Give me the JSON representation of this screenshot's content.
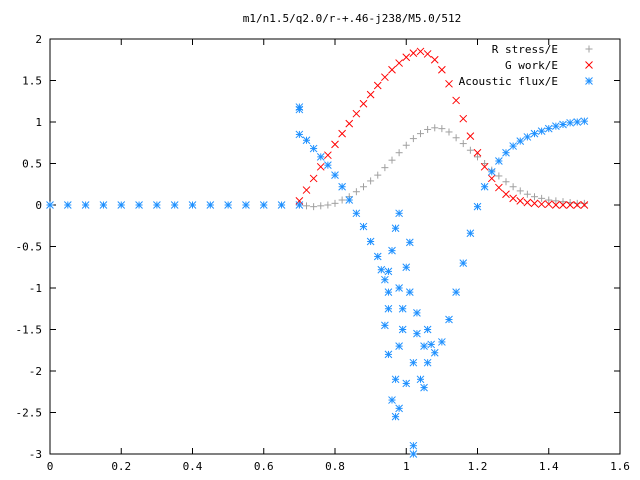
{
  "chart_data": {
    "type": "scatter",
    "title": "m1/n1.5/q2.0/r-+.46-j238/M5.0/512",
    "xlabel": "",
    "ylabel": "",
    "xlim": [
      0,
      1.6
    ],
    "ylim": [
      -3,
      2
    ],
    "x_ticks": [
      "0",
      "0.2",
      "0.4",
      "0.6",
      "0.8",
      "1",
      "1.2",
      "1.4",
      "1.6"
    ],
    "y_ticks": [
      "2",
      "1.5",
      "1",
      "0.5",
      "0",
      "-0.5",
      "-1",
      "-1.5",
      "-2",
      "-2.5",
      "-3"
    ],
    "grid": false,
    "legend_position": "top-right",
    "series": [
      {
        "name": "R stress/E",
        "marker": "+",
        "color": "#a0a0a0",
        "points": [
          [
            0.7,
            0.0
          ],
          [
            0.72,
            -0.01
          ],
          [
            0.74,
            -0.02
          ],
          [
            0.76,
            -0.01
          ],
          [
            0.78,
            0.0
          ],
          [
            0.8,
            0.02
          ],
          [
            0.82,
            0.06
          ],
          [
            0.84,
            0.1
          ],
          [
            0.86,
            0.16
          ],
          [
            0.88,
            0.22
          ],
          [
            0.9,
            0.29
          ],
          [
            0.92,
            0.36
          ],
          [
            0.94,
            0.45
          ],
          [
            0.96,
            0.54
          ],
          [
            0.98,
            0.63
          ],
          [
            1.0,
            0.72
          ],
          [
            1.02,
            0.8
          ],
          [
            1.04,
            0.86
          ],
          [
            1.06,
            0.91
          ],
          [
            1.08,
            0.93
          ],
          [
            1.1,
            0.92
          ],
          [
            1.12,
            0.88
          ],
          [
            1.14,
            0.81
          ],
          [
            1.16,
            0.74
          ],
          [
            1.18,
            0.66
          ],
          [
            1.2,
            0.58
          ],
          [
            1.22,
            0.5
          ],
          [
            1.24,
            0.42
          ],
          [
            1.26,
            0.35
          ],
          [
            1.28,
            0.28
          ],
          [
            1.3,
            0.22
          ],
          [
            1.32,
            0.17
          ],
          [
            1.34,
            0.13
          ],
          [
            1.36,
            0.1
          ],
          [
            1.38,
            0.08
          ],
          [
            1.4,
            0.06
          ],
          [
            1.42,
            0.05
          ],
          [
            1.44,
            0.04
          ],
          [
            1.46,
            0.03
          ],
          [
            1.48,
            0.02
          ],
          [
            1.5,
            0.02
          ]
        ]
      },
      {
        "name": "G work/E",
        "marker": "x",
        "color": "#ff0000",
        "points": [
          [
            0.7,
            0.05
          ],
          [
            0.72,
            0.18
          ],
          [
            0.74,
            0.32
          ],
          [
            0.76,
            0.46
          ],
          [
            0.78,
            0.6
          ],
          [
            0.8,
            0.73
          ],
          [
            0.82,
            0.86
          ],
          [
            0.84,
            0.98
          ],
          [
            0.86,
            1.1
          ],
          [
            0.88,
            1.22
          ],
          [
            0.9,
            1.33
          ],
          [
            0.92,
            1.44
          ],
          [
            0.94,
            1.54
          ],
          [
            0.96,
            1.63
          ],
          [
            0.98,
            1.71
          ],
          [
            1.0,
            1.78
          ],
          [
            1.02,
            1.83
          ],
          [
            1.04,
            1.85
          ],
          [
            1.06,
            1.82
          ],
          [
            1.08,
            1.75
          ],
          [
            1.1,
            1.63
          ],
          [
            1.12,
            1.46
          ],
          [
            1.14,
            1.26
          ],
          [
            1.16,
            1.04
          ],
          [
            1.18,
            0.83
          ],
          [
            1.2,
            0.63
          ],
          [
            1.22,
            0.46
          ],
          [
            1.24,
            0.32
          ],
          [
            1.26,
            0.21
          ],
          [
            1.28,
            0.13
          ],
          [
            1.3,
            0.08
          ],
          [
            1.32,
            0.05
          ],
          [
            1.34,
            0.03
          ],
          [
            1.36,
            0.02
          ],
          [
            1.38,
            0.01
          ],
          [
            1.4,
            0.01
          ],
          [
            1.42,
            0.0
          ],
          [
            1.44,
            0.0
          ],
          [
            1.46,
            0.0
          ],
          [
            1.48,
            0.0
          ],
          [
            1.5,
            0.0
          ]
        ]
      },
      {
        "name": "Acoustic flux/E",
        "marker": "*",
        "color": "#1e90ff",
        "points": [
          [
            0.0,
            0.0
          ],
          [
            0.05,
            0.0
          ],
          [
            0.1,
            0.0
          ],
          [
            0.15,
            0.0
          ],
          [
            0.2,
            0.0
          ],
          [
            0.25,
            0.0
          ],
          [
            0.3,
            0.0
          ],
          [
            0.35,
            0.0
          ],
          [
            0.4,
            0.0
          ],
          [
            0.45,
            0.0
          ],
          [
            0.5,
            0.0
          ],
          [
            0.55,
            0.0
          ],
          [
            0.6,
            0.0
          ],
          [
            0.65,
            0.0
          ],
          [
            0.7,
            0.0
          ],
          [
            0.7,
            1.15
          ],
          [
            0.7,
            1.18
          ],
          [
            0.7,
            0.85
          ],
          [
            0.72,
            0.78
          ],
          [
            0.74,
            0.68
          ],
          [
            0.76,
            0.58
          ],
          [
            0.78,
            0.48
          ],
          [
            0.8,
            0.36
          ],
          [
            0.82,
            0.22
          ],
          [
            0.84,
            0.06
          ],
          [
            0.86,
            -0.1
          ],
          [
            0.88,
            -0.26
          ],
          [
            0.9,
            -0.44
          ],
          [
            0.92,
            -0.62
          ],
          [
            0.93,
            -0.78
          ],
          [
            0.94,
            -0.9
          ],
          [
            0.95,
            -0.8
          ],
          [
            0.96,
            -0.55
          ],
          [
            0.97,
            -0.28
          ],
          [
            0.98,
            -0.1
          ],
          [
            0.95,
            -1.05
          ],
          [
            0.95,
            -1.25
          ],
          [
            0.94,
            -1.45
          ],
          [
            0.95,
            -1.8
          ],
          [
            0.96,
            -2.35
          ],
          [
            0.97,
            -2.1
          ],
          [
            0.97,
            -2.55
          ],
          [
            0.98,
            -1.0
          ],
          [
            0.98,
            -1.7
          ],
          [
            0.98,
            -2.45
          ],
          [
            0.99,
            -1.25
          ],
          [
            0.99,
            -1.5
          ],
          [
            1.0,
            -2.15
          ],
          [
            1.0,
            -0.75
          ],
          [
            1.01,
            -0.45
          ],
          [
            1.01,
            -1.05
          ],
          [
            1.02,
            -1.9
          ],
          [
            1.02,
            -2.9
          ],
          [
            1.02,
            -3.0
          ],
          [
            1.03,
            -1.3
          ],
          [
            1.03,
            -1.55
          ],
          [
            1.04,
            -2.1
          ],
          [
            1.05,
            -1.7
          ],
          [
            1.05,
            -2.2
          ],
          [
            1.06,
            -1.5
          ],
          [
            1.06,
            -1.9
          ],
          [
            1.07,
            -1.68
          ],
          [
            1.08,
            -1.78
          ],
          [
            1.1,
            -1.65
          ],
          [
            1.12,
            -1.38
          ],
          [
            1.14,
            -1.05
          ],
          [
            1.16,
            -0.7
          ],
          [
            1.18,
            -0.34
          ],
          [
            1.2,
            -0.02
          ],
          [
            1.22,
            0.22
          ],
          [
            1.24,
            0.4
          ],
          [
            1.26,
            0.53
          ],
          [
            1.28,
            0.63
          ],
          [
            1.3,
            0.71
          ],
          [
            1.32,
            0.77
          ],
          [
            1.34,
            0.82
          ],
          [
            1.36,
            0.86
          ],
          [
            1.38,
            0.89
          ],
          [
            1.4,
            0.92
          ],
          [
            1.42,
            0.95
          ],
          [
            1.44,
            0.97
          ],
          [
            1.46,
            0.99
          ],
          [
            1.48,
            1.0
          ],
          [
            1.5,
            1.01
          ]
        ]
      }
    ]
  }
}
